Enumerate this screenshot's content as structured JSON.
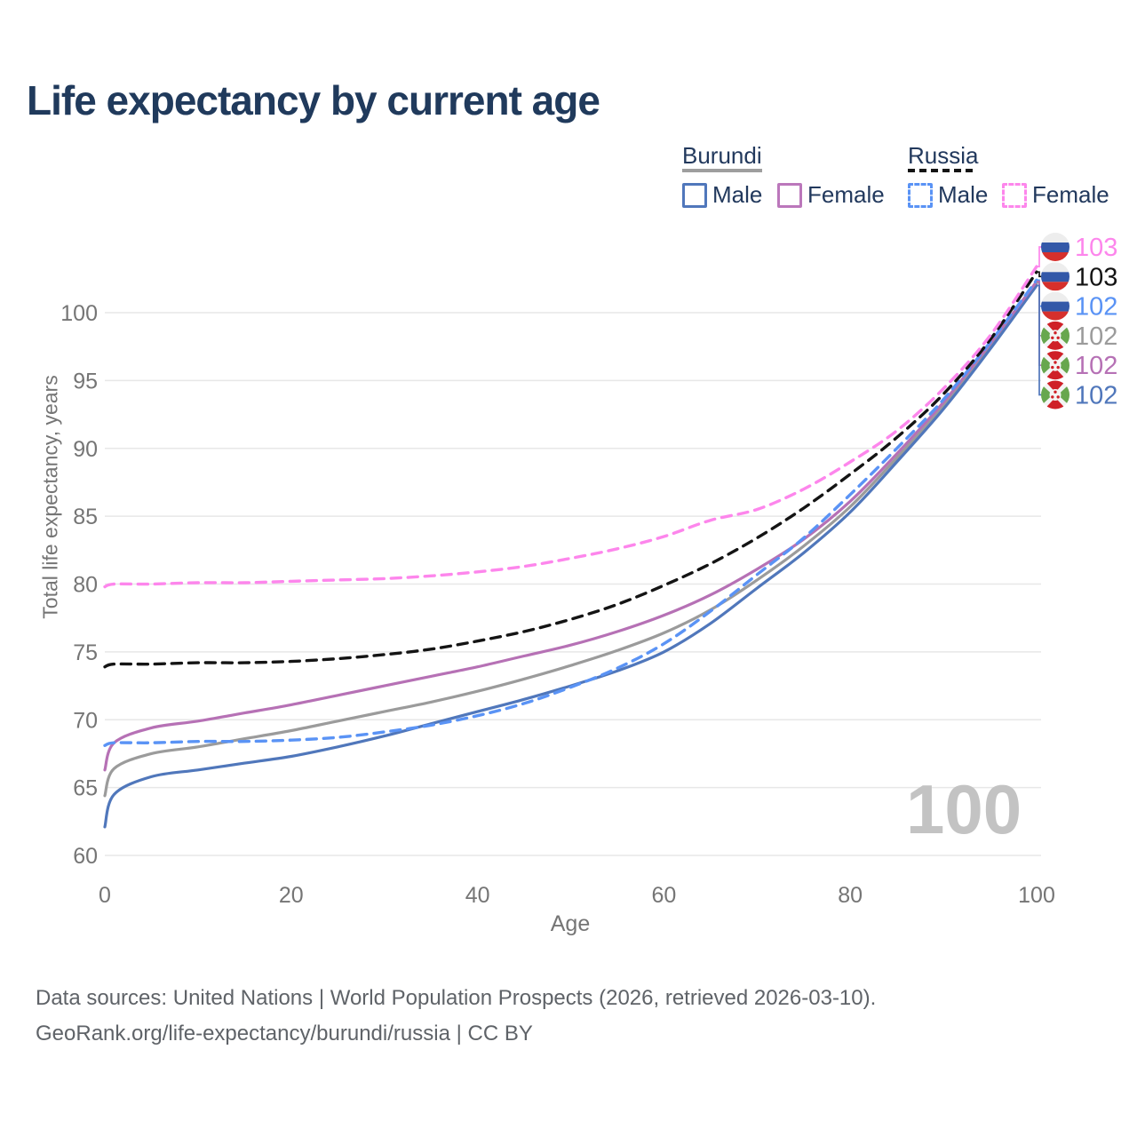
{
  "header": {
    "title": "Life expectancy by current age"
  },
  "legend": {
    "groups": [
      {
        "label": "Burundi",
        "line_style": "solid",
        "underline_color": "#9e9e9e",
        "male": {
          "label": "Male",
          "color": "#5077bb",
          "dashed": false
        },
        "female": {
          "label": "Female",
          "color": "#bb77bb",
          "dashed": false
        }
      },
      {
        "label": "Russia",
        "line_style": "dashed",
        "underline_color": "#141414",
        "male": {
          "label": "Male",
          "color": "#5a93f5",
          "dashed": true
        },
        "female": {
          "label": "Female",
          "color": "#fd86ec",
          "dashed": true
        }
      }
    ]
  },
  "chart_data": {
    "type": "line",
    "title": "Life expectancy by current age",
    "xlabel": "Age",
    "ylabel": "Total life expectancy, years",
    "xlim": [
      0,
      100
    ],
    "ylim": [
      60,
      103.5
    ],
    "x_ticks": [
      0,
      20,
      40,
      60,
      80,
      100
    ],
    "y_ticks": [
      60,
      65,
      70,
      75,
      80,
      85,
      90,
      95,
      100
    ],
    "grid": "horizontal-only",
    "grid_color": "#e7e7e7",
    "tick_color": "#757575",
    "frame_label": "100",
    "ages": [
      0,
      1,
      5,
      10,
      15,
      20,
      25,
      30,
      35,
      40,
      45,
      50,
      55,
      60,
      65,
      70,
      75,
      80,
      85,
      90,
      95,
      100
    ],
    "series": [
      {
        "id": "burundi_total",
        "name": "Burundi",
        "country": "burundi",
        "sex": "total",
        "color": "#9b9b9b",
        "dashed": false,
        "values": [
          64.4,
          66.4,
          67.5,
          68.0,
          68.6,
          69.2,
          69.9,
          70.6,
          71.3,
          72.1,
          73.0,
          74.0,
          75.1,
          76.4,
          78.1,
          80.3,
          82.8,
          85.7,
          89.3,
          93.1,
          97.5,
          102.2
        ],
        "end_label": "102"
      },
      {
        "id": "burundi_male",
        "name": "Burundi Male",
        "country": "burundi",
        "sex": "male",
        "color": "#5077bb",
        "dashed": false,
        "values": [
          62.1,
          64.5,
          65.8,
          66.3,
          66.8,
          67.3,
          68.0,
          68.8,
          69.7,
          70.6,
          71.5,
          72.5,
          73.6,
          75.0,
          77.1,
          79.7,
          82.3,
          85.3,
          89.0,
          92.9,
          97.3,
          102.0
        ],
        "end_label": "102"
      },
      {
        "id": "burundi_female",
        "name": "Burundi Female",
        "country": "burundi",
        "sex": "female",
        "color": "#b671b5",
        "dashed": false,
        "values": [
          66.3,
          68.3,
          69.4,
          69.9,
          70.5,
          71.1,
          71.8,
          72.5,
          73.2,
          73.9,
          74.7,
          75.5,
          76.5,
          77.7,
          79.2,
          81.1,
          83.3,
          86.1,
          89.6,
          93.4,
          97.7,
          102.3
        ],
        "end_label": "102"
      },
      {
        "id": "russia_male",
        "name": "Russia Male",
        "country": "russia",
        "sex": "male",
        "color": "#5a93f5",
        "dashed": true,
        "values": [
          68.1,
          68.3,
          68.3,
          68.4,
          68.4,
          68.5,
          68.7,
          69.1,
          69.6,
          70.3,
          71.2,
          72.4,
          73.8,
          75.6,
          78.0,
          80.7,
          83.4,
          86.6,
          90.0,
          93.6,
          97.8,
          102.4
        ],
        "end_label": "102"
      },
      {
        "id": "russia_total",
        "name": "Russia",
        "country": "russia",
        "sex": "total",
        "color": "#141414",
        "dashed": true,
        "values": [
          73.9,
          74.1,
          74.1,
          74.2,
          74.2,
          74.3,
          74.5,
          74.8,
          75.2,
          75.8,
          76.5,
          77.4,
          78.5,
          79.9,
          81.5,
          83.4,
          85.6,
          88.1,
          90.8,
          94.0,
          98.0,
          103.0
        ],
        "end_label": "103"
      },
      {
        "id": "russia_female",
        "name": "Russia Female",
        "country": "russia",
        "sex": "female",
        "color": "#fd86ec",
        "dashed": true,
        "values": [
          79.8,
          80.0,
          80.0,
          80.1,
          80.1,
          80.2,
          80.3,
          80.4,
          80.6,
          80.9,
          81.3,
          81.9,
          82.6,
          83.5,
          84.7,
          85.5,
          87.0,
          89.0,
          91.3,
          94.4,
          98.3,
          103.4
        ],
        "end_label": "103"
      }
    ],
    "end_label_order": [
      "russia_female",
      "russia_total",
      "russia_male",
      "burundi_total",
      "burundi_female",
      "burundi_male"
    ]
  },
  "footer": {
    "line1": "Data sources: United Nations | World Population Prospects (2026, retrieved 2026-03-10).",
    "line2": "GeoRank.org/life-expectancy/burundi/russia | CC BY"
  }
}
